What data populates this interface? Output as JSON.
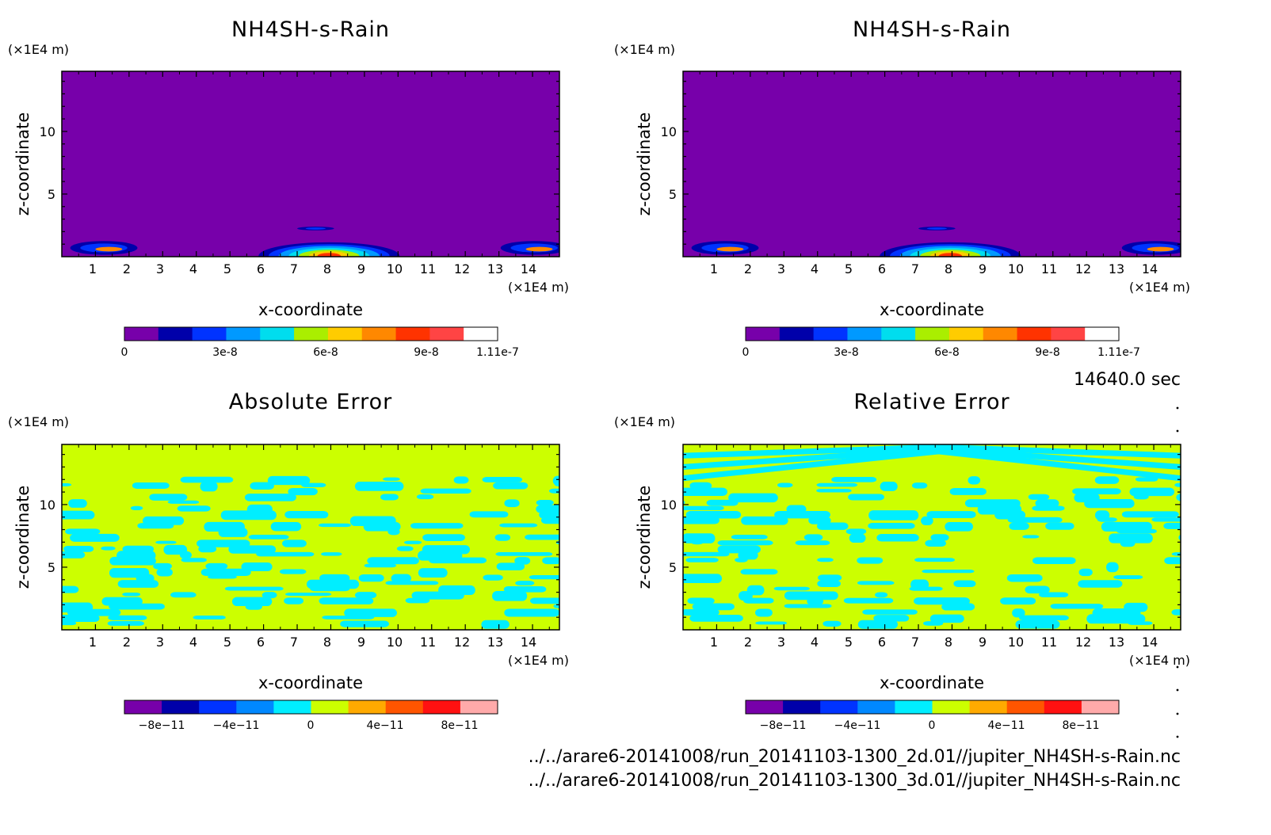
{
  "colors": {
    "rain_scale": [
      "#7700aa",
      "#0000aa",
      "#0033ff",
      "#0099ff",
      "#00ddee",
      "#aaee00",
      "#ffcc00",
      "#ff8800",
      "#ff3300",
      "#ff4444",
      "#ffffff"
    ],
    "error_scale": [
      "#7700aa",
      "#0000aa",
      "#0033ff",
      "#0088ff",
      "#00eeff",
      "#ccff00",
      "#ffaa00",
      "#ff5500",
      "#ff1111",
      "#ffaaaa"
    ],
    "background_purple": "#7700aa",
    "error_yellow": "#ccff00",
    "error_cyan": "#00eeff"
  },
  "time_label": "14640.0 sec",
  "files": [
    "../../arare6-20141008/run_20141103-1300_2d.01//jupiter_NH4SH-s-Rain.nc",
    "../../arare6-20141008/run_20141103-1300_3d.01//jupiter_NH4SH-s-Rain.nc"
  ],
  "chart_data": [
    {
      "type": "heatmap",
      "title": "NH4SH-s-Rain",
      "xlabel": "x-coordinate",
      "ylabel": "z-coordinate",
      "x_unit": "(×1E4 m)",
      "y_unit": "(×1E4 m)",
      "x_ticks": [
        "1",
        "2",
        "3",
        "4",
        "5",
        "6",
        "7",
        "8",
        "9",
        "10",
        "11",
        "12",
        "13",
        "14"
      ],
      "y_ticks": [
        "5",
        "10"
      ],
      "xlim": [
        0,
        14.8
      ],
      "ylim": [
        0,
        14.8
      ],
      "colorbar": {
        "labels": [
          "0",
          "3e-8",
          "6e-8",
          "9e-8",
          "1.11e-7"
        ],
        "range": [
          0,
          1.11e-07
        ]
      },
      "features": [
        {
          "x": 8.0,
          "z": 0.5,
          "value_level": "max",
          "desc": "core"
        },
        {
          "x": 1.2,
          "z": 0.6,
          "value_level": "low"
        },
        {
          "x": 14.0,
          "z": 0.6,
          "value_level": "low"
        },
        {
          "x": 7.6,
          "z": 2.3,
          "value_level": "low"
        }
      ]
    },
    {
      "type": "heatmap",
      "title": "NH4SH-s-Rain",
      "xlabel": "x-coordinate",
      "ylabel": "z-coordinate",
      "x_unit": "(×1E4 m)",
      "y_unit": "(×1E4 m)",
      "x_ticks": [
        "1",
        "2",
        "3",
        "4",
        "5",
        "6",
        "7",
        "8",
        "9",
        "10",
        "11",
        "12",
        "13",
        "14"
      ],
      "y_ticks": [
        "5",
        "10"
      ],
      "xlim": [
        0,
        14.8
      ],
      "ylim": [
        0,
        14.8
      ],
      "colorbar": {
        "labels": [
          "0",
          "3e-8",
          "6e-8",
          "9e-8",
          "1.11e-7"
        ],
        "range": [
          0,
          1.11e-07
        ]
      },
      "features": [
        {
          "x": 8.0,
          "z": 0.5,
          "value_level": "max",
          "desc": "core"
        },
        {
          "x": 1.2,
          "z": 0.6,
          "value_level": "low"
        },
        {
          "x": 14.0,
          "z": 0.6,
          "value_level": "low"
        },
        {
          "x": 7.6,
          "z": 2.3,
          "value_level": "low"
        }
      ]
    },
    {
      "type": "heatmap",
      "title": "Absolute Error",
      "xlabel": "x-coordinate",
      "ylabel": "z-coordinate",
      "x_unit": "(×1E4 m)",
      "y_unit": "(×1E4 m)",
      "x_ticks": [
        "1",
        "2",
        "3",
        "4",
        "5",
        "6",
        "7",
        "8",
        "9",
        "10",
        "11",
        "12",
        "13",
        "14"
      ],
      "y_ticks": [
        "5",
        "10"
      ],
      "xlim": [
        0,
        14.8
      ],
      "ylim": [
        0,
        14.8
      ],
      "colorbar": {
        "labels": [
          "−8e−11",
          "−4e−11",
          "0",
          "4e−11",
          "8e−11"
        ],
        "range": [
          -1e-10,
          1e-10
        ]
      }
    },
    {
      "type": "heatmap",
      "title": "Relative Error",
      "xlabel": "x-coordinate",
      "ylabel": "z-coordinate",
      "x_unit": "(×1E4 m)",
      "y_unit": "(×1E4 m)",
      "x_ticks": [
        "1",
        "2",
        "3",
        "4",
        "5",
        "6",
        "7",
        "8",
        "9",
        "10",
        "11",
        "12",
        "13",
        "14"
      ],
      "y_ticks": [
        "5",
        "10"
      ],
      "xlim": [
        0,
        14.8
      ],
      "ylim": [
        0,
        14.8
      ],
      "colorbar": {
        "labels": [
          "−8e−11",
          "−4e−11",
          "0",
          "4e−11",
          "8e−11"
        ],
        "range": [
          -1e-10,
          1e-10
        ]
      }
    }
  ]
}
